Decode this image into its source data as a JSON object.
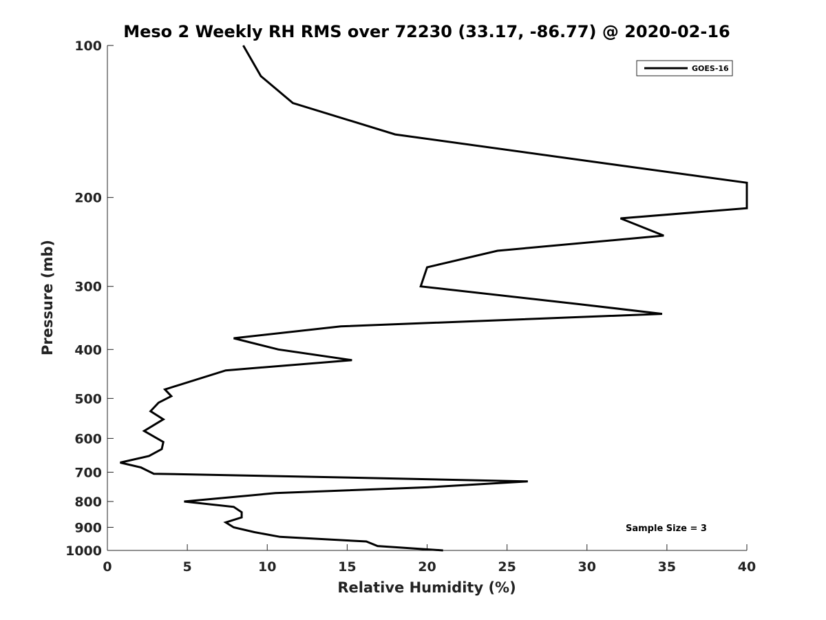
{
  "chart_data": {
    "type": "line",
    "title": "Meso 2 Weekly RH RMS over 72230 (33.17, -86.77) @ 2020-02-16",
    "xlabel": "Relative Humidity (%)",
    "ylabel": "Pressure (mb)",
    "xlim": [
      0,
      40
    ],
    "ylim": [
      100,
      1000
    ],
    "y_scale": "log",
    "y_reversed": true,
    "x_ticks": [
      0,
      5,
      10,
      15,
      20,
      25,
      30,
      35,
      40
    ],
    "y_ticks": [
      100,
      200,
      300,
      400,
      500,
      600,
      700,
      800,
      900,
      1000
    ],
    "grid": false,
    "legend_position": "top-right",
    "annotation": "Sample Size = 3",
    "line_color": "#000000",
    "series": [
      {
        "name": "GOES-16",
        "x": [
          8.5,
          9.6,
          11.6,
          18.0,
          31.6,
          40.0,
          40.0,
          32.1,
          34.8,
          24.4,
          20.0,
          19.6,
          29.4,
          34.7,
          14.6,
          7.9,
          10.7,
          15.3,
          7.4,
          3.6,
          4.0,
          3.2,
          2.7,
          3.5,
          2.3,
          3.5,
          3.4,
          2.6,
          0.8,
          2.1,
          2.9,
          13.0,
          26.3,
          20.0,
          10.5,
          4.8,
          7.9,
          8.4,
          8.4,
          7.4,
          7.9,
          9.2,
          10.8,
          16.2,
          16.9,
          21.0
        ],
        "y": [
          100,
          115,
          130,
          150,
          172,
          187,
          210,
          220,
          238,
          255,
          275,
          300,
          325,
          340,
          360,
          380,
          400,
          420,
          440,
          480,
          495,
          510,
          530,
          550,
          580,
          610,
          630,
          650,
          670,
          685,
          705,
          715,
          730,
          750,
          770,
          800,
          820,
          840,
          860,
          880,
          900,
          920,
          940,
          960,
          980,
          1000
        ]
      }
    ]
  }
}
